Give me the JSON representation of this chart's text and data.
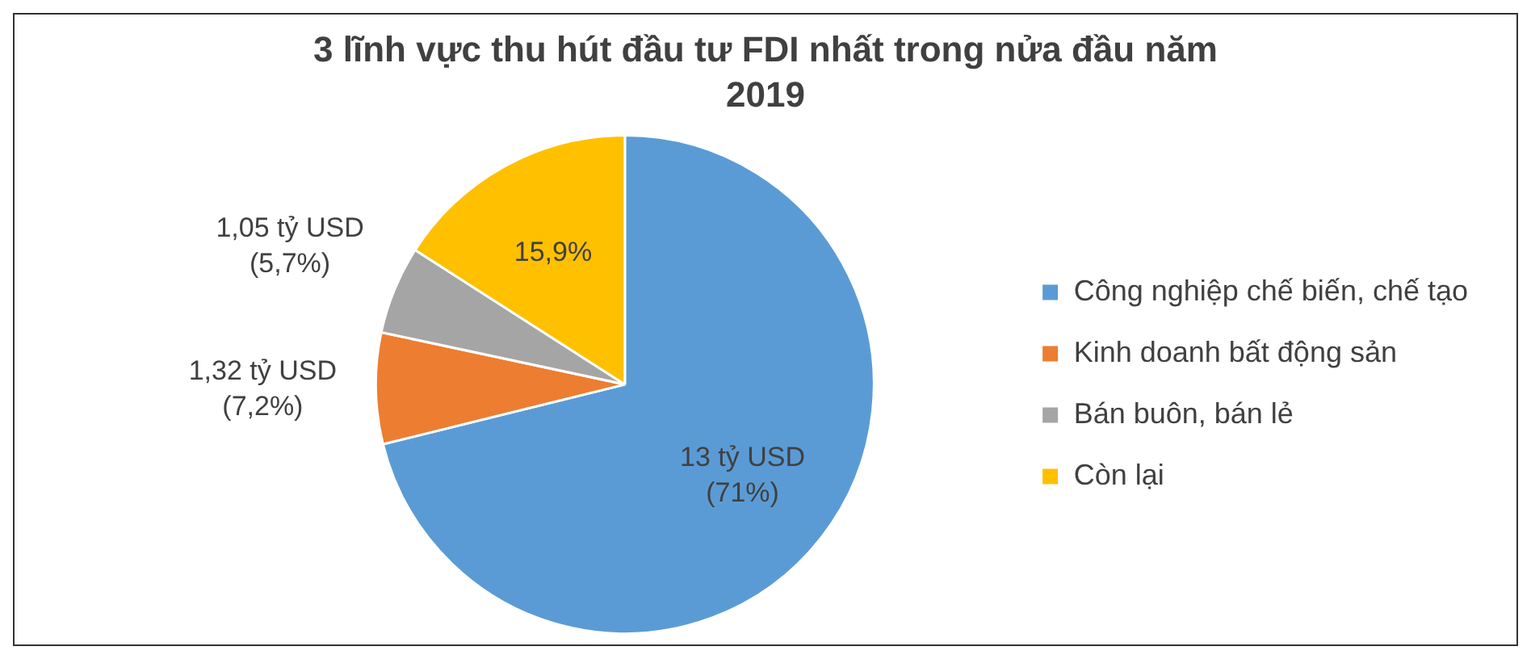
{
  "chart_data": {
    "type": "pie",
    "title": "3 lĩnh vực thu hút đầu tư FDI nhất trong nửa đầu năm 2019",
    "categories": [
      "Công nghiệp chế biến, chế tạo",
      "Kinh doanh bất động sản",
      "Bán buôn, bán lẻ",
      "Còn lại"
    ],
    "values": [
      71,
      7.2,
      5.7,
      15.9
    ],
    "colors": [
      "#5b9bd5",
      "#ed7d31",
      "#a5a5a5",
      "#ffc000"
    ],
    "value_labels": [
      "13 tỷ USD\n(71%)",
      "1,32 tỷ USD\n(7,2%)",
      "1,05 tỷ USD\n(5,7%)",
      "15,9%"
    ],
    "legend": "right"
  }
}
